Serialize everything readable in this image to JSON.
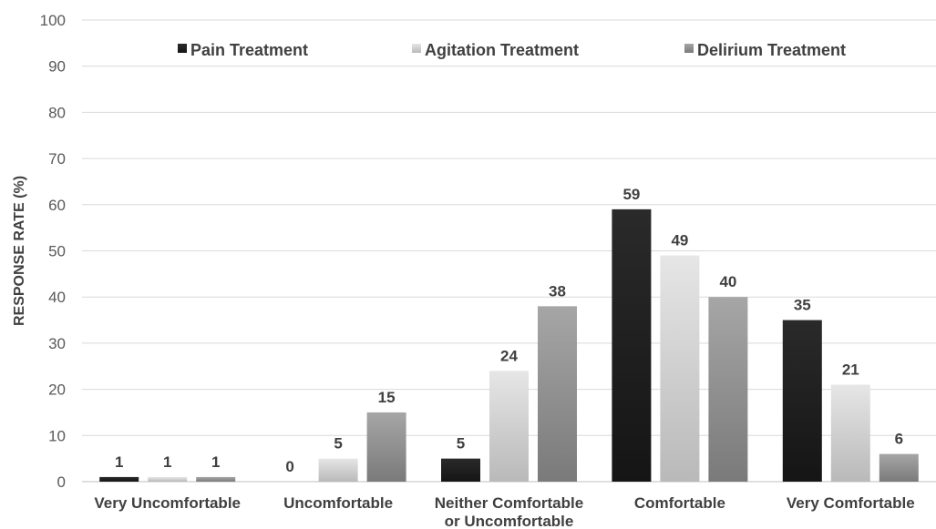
{
  "chart_data": {
    "type": "bar",
    "title": "",
    "xlabel": "",
    "ylabel": "RESPONSE RATE (%)",
    "ylim": [
      0,
      100
    ],
    "ytick_step": 10,
    "grid": true,
    "legend_position": "top",
    "categories": [
      [
        "Very Uncomfortable"
      ],
      [
        "Uncomfortable"
      ],
      [
        "Neither Comfortable",
        "or Uncomfortable"
      ],
      [
        "Comfortable"
      ],
      [
        "Very Comfortable"
      ]
    ],
    "series": [
      {
        "name": "Pain Treatment",
        "values": [
          1,
          0,
          5,
          59,
          35
        ],
        "color_top": "#2a2a2a",
        "color_bottom": "#151515"
      },
      {
        "name": "Agitation Treatment",
        "values": [
          1,
          5,
          24,
          49,
          21
        ],
        "color_top": "#e6e6e6",
        "color_bottom": "#b9b9b9"
      },
      {
        "name": "Delirium Treatment",
        "values": [
          1,
          15,
          38,
          40,
          6
        ],
        "color_top": "#a6a6a6",
        "color_bottom": "#7a7a7a"
      }
    ]
  }
}
